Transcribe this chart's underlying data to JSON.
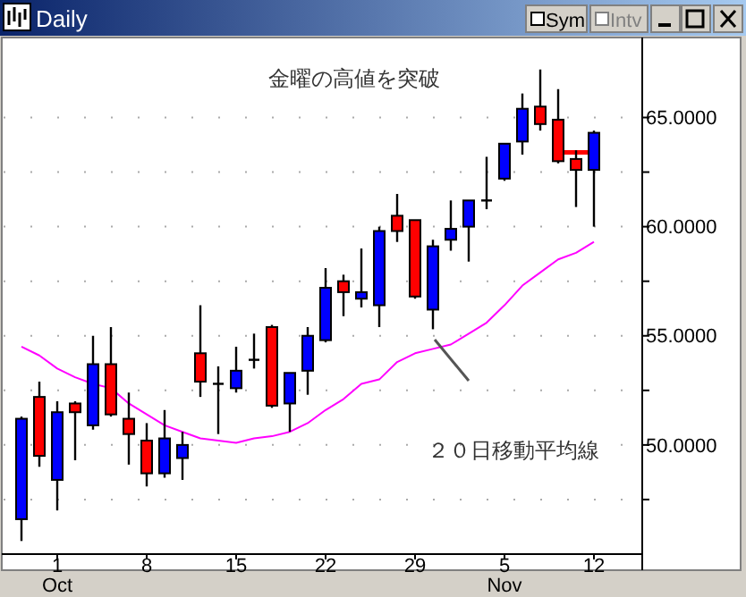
{
  "chart_data": {
    "type": "candlestick",
    "title": "Daily",
    "categories": [
      null,
      null,
      "1\nOct",
      null,
      null,
      null,
      null,
      "8",
      null,
      null,
      null,
      null,
      "15",
      null,
      null,
      null,
      null,
      "22",
      null,
      null,
      null,
      null,
      "29",
      null,
      null,
      null,
      null,
      "5\nNov",
      null,
      null,
      null,
      null,
      "12"
    ],
    "ohlc": [
      [
        46.6,
        51.3,
        45.6,
        51.2
      ],
      [
        52.2,
        52.9,
        49.0,
        49.5
      ],
      [
        48.4,
        52.0,
        47.0,
        51.5
      ],
      [
        51.9,
        52.0,
        49.3,
        51.5
      ],
      [
        50.9,
        55.0,
        50.7,
        53.7
      ],
      [
        53.7,
        55.4,
        51.3,
        51.4
      ],
      [
        51.2,
        52.4,
        49.1,
        50.5
      ],
      [
        50.2,
        51.0,
        48.1,
        48.7
      ],
      [
        48.7,
        51.6,
        48.5,
        50.3
      ],
      [
        49.4,
        50.6,
        48.4,
        50.0
      ],
      [
        54.2,
        56.4,
        52.2,
        52.9
      ],
      [
        52.8,
        53.6,
        50.5,
        52.8
      ],
      [
        52.6,
        54.5,
        52.4,
        53.4
      ],
      [
        53.9,
        55.1,
        53.5,
        53.9
      ],
      [
        55.4,
        55.5,
        51.7,
        51.8
      ],
      [
        51.9,
        53.3,
        50.6,
        53.3
      ],
      [
        53.4,
        55.4,
        52.3,
        55.0
      ],
      [
        54.8,
        58.1,
        54.7,
        57.2
      ],
      [
        57.5,
        57.8,
        55.9,
        57.0
      ],
      [
        56.7,
        59.0,
        56.3,
        57.0
      ],
      [
        56.4,
        60.0,
        55.4,
        59.8
      ],
      [
        60.5,
        61.5,
        59.3,
        59.8
      ],
      [
        60.3,
        60.3,
        56.7,
        56.8
      ],
      [
        56.2,
        59.4,
        55.3,
        59.1
      ],
      [
        59.4,
        61.2,
        58.9,
        59.9
      ],
      [
        60.0,
        61.2,
        58.4,
        61.2
      ],
      [
        61.2,
        63.2,
        60.8,
        61.2
      ],
      [
        62.2,
        63.8,
        62.1,
        63.8
      ],
      [
        63.9,
        66.1,
        63.3,
        65.4
      ],
      [
        65.5,
        67.2,
        64.4,
        64.7
      ],
      [
        64.9,
        66.3,
        62.9,
        63.0
      ],
      [
        63.1,
        63.5,
        60.9,
        62.6
      ],
      [
        62.6,
        64.4,
        60.0,
        64.3
      ]
    ],
    "colors": [
      "#0000ff",
      "#ff0000",
      "#0000ff",
      "#ff0000",
      "#0000ff",
      "#ff0000",
      "#ff0000",
      "#ff0000",
      "#0000ff",
      "#0000ff",
      "#ff0000",
      "#000000",
      "#0000ff",
      "#000000",
      "#ff0000",
      "#0000ff",
      "#0000ff",
      "#0000ff",
      "#ff0000",
      "#0000ff",
      "#0000ff",
      "#ff0000",
      "#ff0000",
      "#0000ff",
      "#0000ff",
      "#0000ff",
      "#000000",
      "#0000ff",
      "#0000ff",
      "#ff0000",
      "#ff0000",
      "#ff0000",
      "#0000ff"
    ],
    "series": [
      {
        "name": "２０日移動平均線",
        "type": "line",
        "color": "#ff00ff",
        "values": [
          54.5,
          54.1,
          53.5,
          53.1,
          52.8,
          52.6,
          51.9,
          51.4,
          50.9,
          50.6,
          50.3,
          50.2,
          50.1,
          50.3,
          50.4,
          50.6,
          51.0,
          51.6,
          52.1,
          52.8,
          53.0,
          53.8,
          54.2,
          54.4,
          54.6,
          55.1,
          55.6,
          56.4,
          57.3,
          57.9,
          58.5,
          58.8,
          59.3
        ]
      },
      {
        "type": "line",
        "color": "#ff0000",
        "values": [
          null,
          null,
          null,
          null,
          null,
          null,
          null,
          null,
          null,
          null,
          null,
          null,
          null,
          null,
          null,
          null,
          null,
          null,
          null,
          null,
          null,
          null,
          null,
          null,
          null,
          null,
          null,
          null,
          null,
          null,
          63.4,
          63.4,
          63.4
        ]
      }
    ],
    "ylim": [
      45,
      68.5
    ],
    "yticks": [
      {
        "value": 47.5,
        "label": null
      },
      {
        "value": 50,
        "label": "50.0000"
      },
      {
        "value": 52.5,
        "label": null
      },
      {
        "value": 55,
        "label": "55.0000"
      },
      {
        "value": 57.5,
        "label": null
      },
      {
        "value": 60,
        "label": "60.0000"
      },
      {
        "value": 62.5,
        "label": null
      },
      {
        "value": 65,
        "label": "65.0000"
      }
    ],
    "grid": "y",
    "annotations": [
      "金曜の高値を突破",
      "Sym",
      "Intv"
    ]
  }
}
